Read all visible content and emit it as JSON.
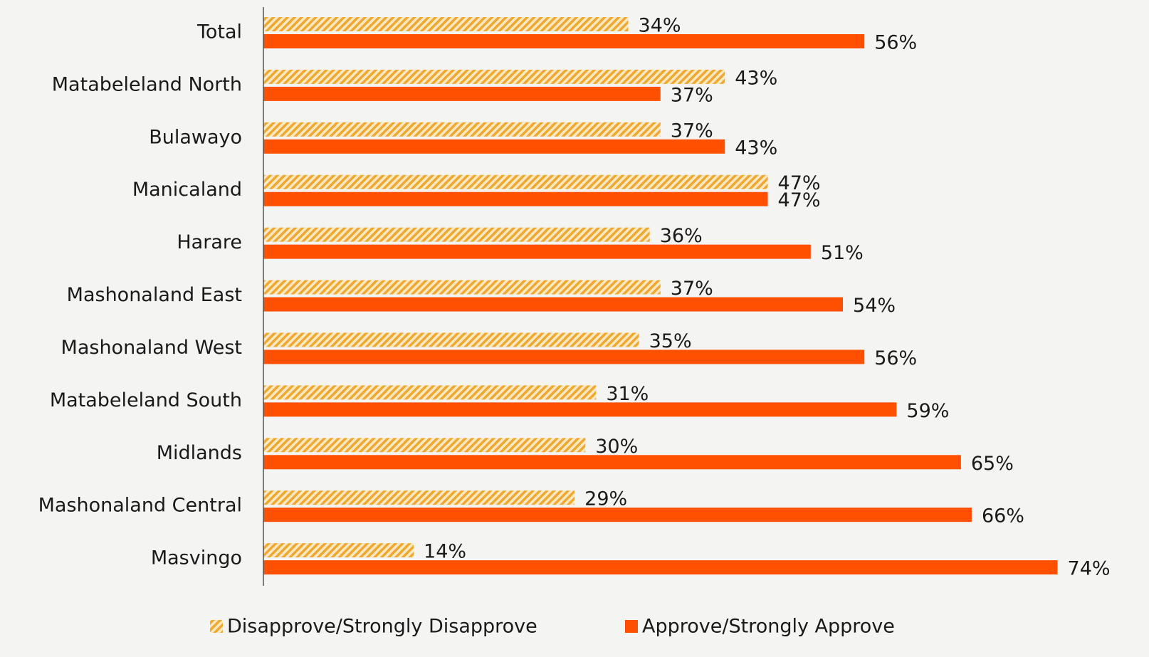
{
  "chart_data": {
    "type": "hbar",
    "categories": [
      "Total",
      "Matabeleland North",
      "Bulawayo",
      "Manicaland",
      "Harare",
      "Mashonaland East",
      "Mashonaland West",
      "Matabeleland South",
      "Midlands",
      "Mashonaland Central",
      "Masvingo"
    ],
    "series": [
      {
        "name": "Disapprove/Strongly Disapprove",
        "color": "#f0a830",
        "pattern": "hatch",
        "values": [
          34,
          43,
          37,
          47,
          36,
          37,
          35,
          31,
          30,
          29,
          14
        ],
        "value_labels": [
          "34%",
          "43%",
          "37%",
          "47%",
          "36%",
          "37%",
          "35%",
          "31%",
          "30%",
          "29%",
          "14%"
        ]
      },
      {
        "name": "Approve/Strongly Approve",
        "color": "#ff5000",
        "values": [
          56,
          37,
          43,
          47,
          51,
          54,
          56,
          59,
          65,
          66,
          74
        ],
        "value_labels": [
          "56%",
          "37%",
          "43%",
          "47%",
          "51%",
          "54%",
          "56%",
          "59%",
          "65%",
          "66%",
          "74%"
        ]
      }
    ],
    "xlim": [
      0,
      80
    ],
    "legend": "bottom"
  }
}
